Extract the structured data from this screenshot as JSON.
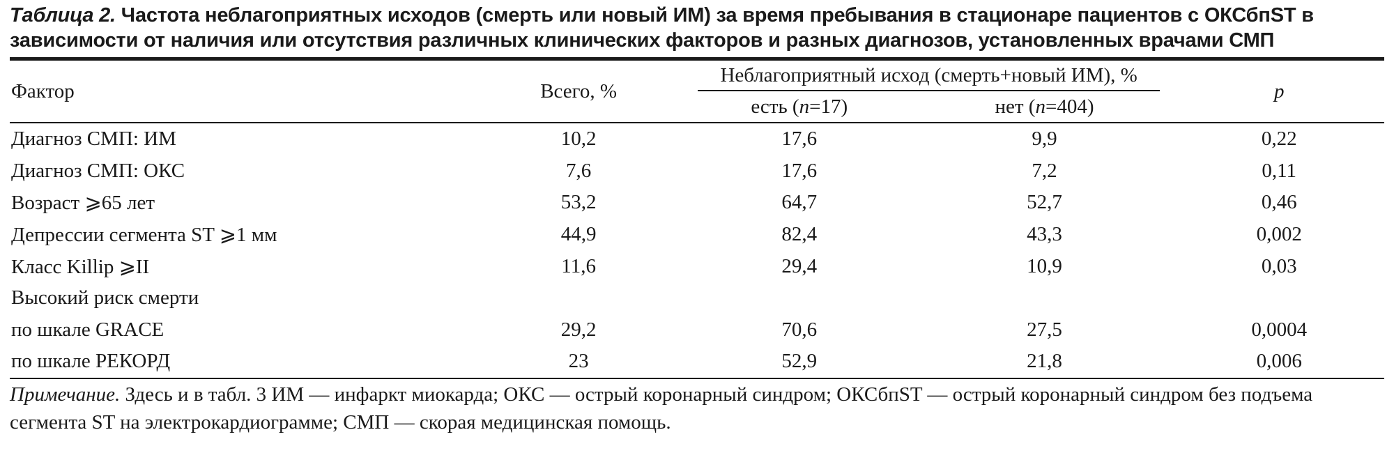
{
  "caption": {
    "label": "Таблица 2.",
    "text": "Частота неблагоприятных исходов (смерть или новый ИМ) за время пребывания в стационаре пациентов с ОКСбпST в зависимости от наличия или отсутствия различных клинических факторов и разных диагнозов, установленных врачами СМП"
  },
  "table": {
    "headers": {
      "factor": "Фактор",
      "total": "Всего, %",
      "outcome_group": "Неблагоприятный исход (смерть+новый ИМ), %",
      "yes_prefix": "есть (",
      "yes_n": "n",
      "yes_suffix": "=17)",
      "no_prefix": "нет (",
      "no_n": "n",
      "no_suffix": "=404)",
      "p": "p"
    },
    "rows": [
      {
        "factor": "Диагноз СМП: ИМ",
        "total": "10,2",
        "yes": "17,6",
        "no": "9,9",
        "p": "0,22"
      },
      {
        "factor": "Диагноз СМП: ОКС",
        "total": "7,6",
        "yes": "17,6",
        "no": "7,2",
        "p": "0,11"
      },
      {
        "factor": "Возраст ⩾65 лет",
        "total": "53,2",
        "yes": "64,7",
        "no": "52,7",
        "p": "0,46"
      },
      {
        "factor": "Депрессии сегмента ST ⩾1 мм",
        "total": "44,9",
        "yes": "82,4",
        "no": "43,3",
        "p": "0,002"
      },
      {
        "factor": "Класс Killip ⩾II",
        "total": "11,6",
        "yes": "29,4",
        "no": "10,9",
        "p": "0,03"
      },
      {
        "factor": "Высокий риск смерти",
        "total": "",
        "yes": "",
        "no": "",
        "p": ""
      },
      {
        "factor": "по шкале GRACE",
        "total": "29,2",
        "yes": "70,6",
        "no": "27,5",
        "p": "0,0004"
      },
      {
        "factor": "по шкале РЕКОРД",
        "total": "23",
        "yes": "52,9",
        "no": "21,8",
        "p": "0,006"
      }
    ]
  },
  "note": {
    "label": "Примечание.",
    "text": " Здесь и в табл. 3 ИМ — инфаркт миокарда; ОКС — острый коронарный синдром; ОКСбпST — острый коронарный синдром без подъема сегмента ST на электрокардиограмме; СМП  — скорая медицинская помощь."
  }
}
